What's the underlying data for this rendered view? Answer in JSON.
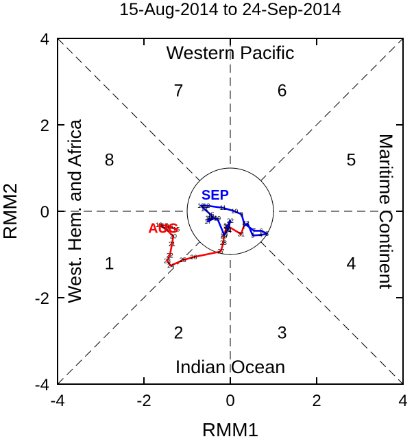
{
  "chart_data": {
    "type": "line",
    "title": "15-Aug-2014 to 24-Sep-2014",
    "xlabel": "RMM1",
    "ylabel": "RMM2",
    "xlim": [
      -4,
      4
    ],
    "ylim": [
      -4,
      4
    ],
    "xticks": [
      -4,
      -2,
      0,
      2,
      4
    ],
    "yticks": [
      -4,
      -2,
      0,
      2,
      4
    ],
    "xtick_labels": [
      "-4",
      "-2",
      "0",
      "2",
      "4"
    ],
    "ytick_labels": [
      "-4",
      "-2",
      "0",
      "2",
      "4"
    ],
    "grid": false,
    "phases": [
      {
        "label": "1",
        "x": -2.8,
        "y": -1.2
      },
      {
        "label": "2",
        "x": -1.2,
        "y": -2.8
      },
      {
        "label": "3",
        "x": 1.2,
        "y": -2.8
      },
      {
        "label": "4",
        "x": 2.8,
        "y": -1.2
      },
      {
        "label": "5",
        "x": 2.8,
        "y": 1.2
      },
      {
        "label": "6",
        "x": 1.2,
        "y": 2.8
      },
      {
        "label": "7",
        "x": -1.2,
        "y": 2.8
      },
      {
        "label": "8",
        "x": -2.8,
        "y": 1.2
      }
    ],
    "regions": {
      "top": "Western Pacific",
      "bottom": "Indian Ocean",
      "left": "West. Hem. and Africa",
      "right": "Maritime Continent"
    },
    "series": [
      {
        "name": "AUG",
        "color": "#ff0000",
        "label_pos": {
          "x": -1.55,
          "y": -0.5
        },
        "points": [
          {
            "day": "15",
            "x": -1.25,
            "y": -0.42
          },
          {
            "day": "16",
            "x": -1.4,
            "y": -0.36
          },
          {
            "day": "17",
            "x": -1.52,
            "y": -0.33
          },
          {
            "day": "18",
            "x": -1.65,
            "y": -0.32
          },
          {
            "day": "19",
            "x": -1.48,
            "y": -0.42
          },
          {
            "day": "20",
            "x": -1.32,
            "y": -0.58
          },
          {
            "day": "21",
            "x": -1.35,
            "y": -0.76
          },
          {
            "day": "22",
            "x": -1.4,
            "y": -1.02
          },
          {
            "day": "23",
            "x": -1.46,
            "y": -1.15
          },
          {
            "day": "24",
            "x": -1.38,
            "y": -1.26
          },
          {
            "day": "25",
            "x": -1.1,
            "y": -1.13
          },
          {
            "day": "26",
            "x": -0.85,
            "y": -1.06
          },
          {
            "day": "27",
            "x": -0.22,
            "y": -0.93
          },
          {
            "day": "28",
            "x": -0.16,
            "y": -0.73
          },
          {
            "day": "29",
            "x": -0.15,
            "y": -0.58
          },
          {
            "day": "30",
            "x": -0.08,
            "y": -0.33
          },
          {
            "day": "31",
            "x": 0.25,
            "y": -0.53
          }
        ]
      },
      {
        "name": "SEP",
        "color": "#0000ff",
        "label_pos": {
          "x": -0.35,
          "y": 0.27
        },
        "points": [
          {
            "day": "1",
            "x": 0.31,
            "y": -0.35
          },
          {
            "day": "2",
            "x": 0.4,
            "y": -0.28
          },
          {
            "day": "3",
            "x": 0.52,
            "y": -0.56
          },
          {
            "day": "4",
            "x": 0.7,
            "y": -0.55
          },
          {
            "day": "5",
            "x": 0.85,
            "y": -0.52
          },
          {
            "day": "6",
            "x": 0.72,
            "y": -0.45
          },
          {
            "day": "7",
            "x": 0.55,
            "y": -0.45
          },
          {
            "day": "8",
            "x": 0.32,
            "y": -0.28
          },
          {
            "day": "9",
            "x": 0.26,
            "y": -0.07
          },
          {
            "day": "10",
            "x": 0.1,
            "y": 0.0
          },
          {
            "day": "11",
            "x": -0.17,
            "y": 0.08
          },
          {
            "day": "12",
            "x": -0.55,
            "y": 0.13
          },
          {
            "day": "13",
            "x": -0.68,
            "y": 0.13
          },
          {
            "day": "14",
            "x": -0.6,
            "y": 0.05
          },
          {
            "day": "15",
            "x": -0.45,
            "y": -0.08
          },
          {
            "day": "16",
            "x": -0.38,
            "y": -0.16
          },
          {
            "day": "17",
            "x": -0.52,
            "y": -0.24
          },
          {
            "day": "18",
            "x": -0.5,
            "y": -0.16
          },
          {
            "day": "19",
            "x": -0.3,
            "y": -0.17
          },
          {
            "day": "20",
            "x": -0.14,
            "y": -0.55
          },
          {
            "day": "21",
            "x": -0.05,
            "y": -0.42
          },
          {
            "day": "22",
            "x": 0.0,
            "y": -0.22
          },
          {
            "day": "23",
            "x": -0.08,
            "y": -0.36
          },
          {
            "day": "24",
            "x": -0.05,
            "y": -0.45
          }
        ]
      }
    ]
  }
}
